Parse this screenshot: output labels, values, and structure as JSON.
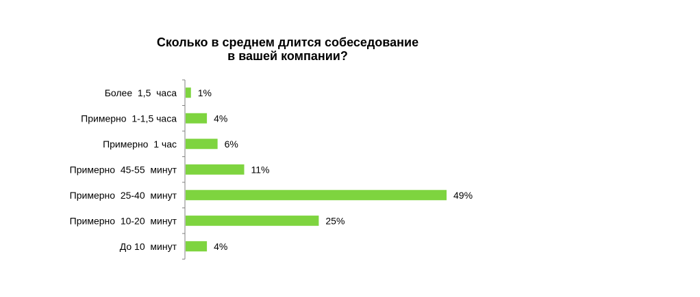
{
  "chart_data": {
    "type": "bar",
    "orientation": "horizontal",
    "title_lines": [
      "Сколько в среднем длится собеседование",
      "в вашей компании?"
    ],
    "categories": [
      "Более  1,5  часа",
      "Примерно  1-1,5 часа",
      "Примерно  1 час",
      "Примерно  45-55  минут",
      "Примерно  25-40  минут",
      "Примерно  10-20  минут",
      "До 10  минут"
    ],
    "values": [
      1,
      4,
      6,
      11,
      49,
      25,
      4
    ],
    "value_labels": [
      "1%",
      "4%",
      "6%",
      "11%",
      "49%",
      "25%",
      "4%"
    ],
    "bar_color": "#7ed43f",
    "axis_color": "#7f7f7f",
    "grid": false,
    "legend": "none"
  }
}
